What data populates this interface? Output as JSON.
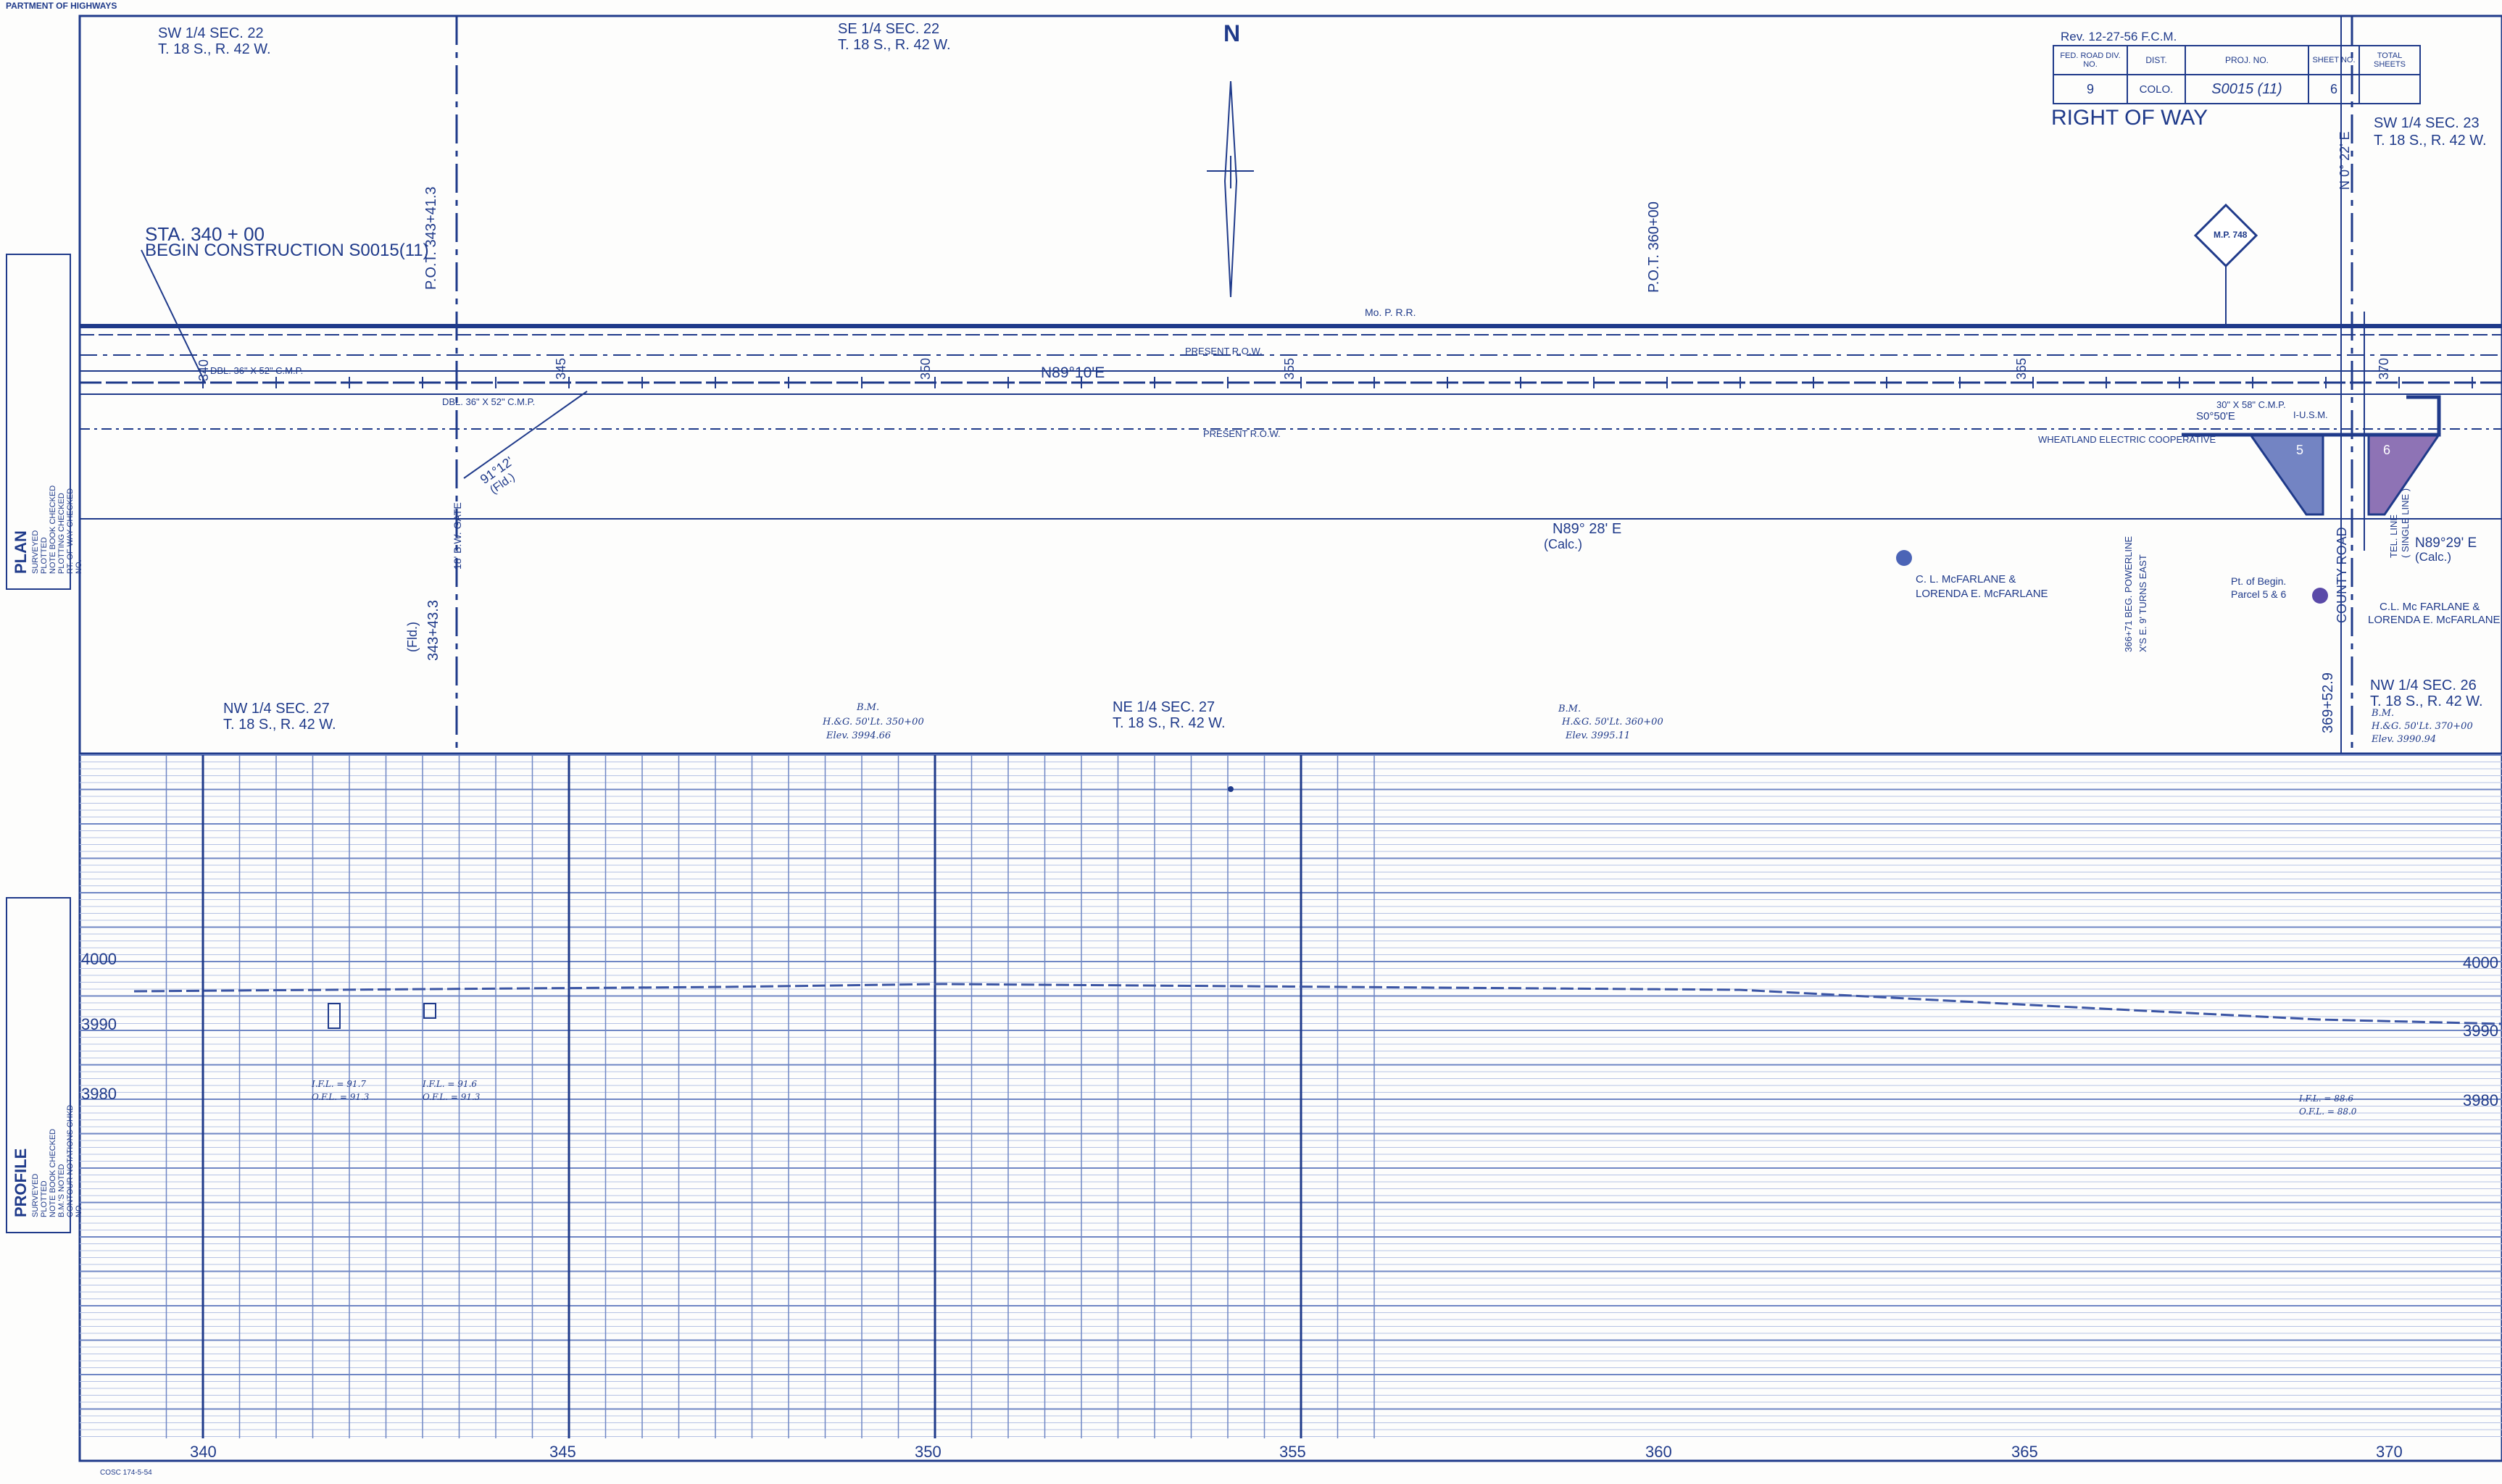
{
  "header": {
    "agency": "PARTMENT OF HIGHWAYS",
    "rev_note": "Rev. 12-27-56 F.C.M.",
    "title": "RIGHT OF WAY",
    "north": "N",
    "title_block": {
      "col1_head": "FED. ROAD DIV. NO.",
      "col2_head": "DIST.",
      "col3_head": "PROJ. NO.",
      "col4_head": "SHEET NO.",
      "col5_head": "TOTAL SHEETS",
      "col1_val": "9",
      "col2_val": "COLO.",
      "col3_val": "S0015 (11)",
      "col4_val": "6",
      "col5_val": ""
    }
  },
  "plan": {
    "sections": {
      "sw22": "SW 1/4 SEC. 22",
      "sw22_tr": "T. 18 S., R. 42 W.",
      "se22": "SE 1/4 SEC. 22",
      "se22_tr": "T. 18 S., R. 42 W.",
      "sw23": "SW 1/4 SEC. 23",
      "sw23_tr": "T. 18 S., R. 42 W.",
      "nw27": "NW 1/4 SEC. 27",
      "nw27_tr": "T. 18 S., R. 42 W.",
      "ne27": "NE 1/4 SEC. 27",
      "ne27_tr": "T. 18 S., R. 42 W.",
      "nw26": "NW 1/4 SEC. 26",
      "nw26_tr": "T. 18 S., R. 42 W."
    },
    "begin_sta": "STA. 340 + 00",
    "begin_construction": "BEGIN CONSTRUCTION S0015(11)",
    "pot_343": "P.O.T. 343+41.3",
    "pot_360": "P.O.T. 360+00",
    "railroad": "Mo. P. R.R.",
    "present_row_top": "PRESENT R.O.W.",
    "present_row_bottom": "PRESENT R.O.W.",
    "bearing_center": "N89°10'E",
    "bearing_calc": "N89° 28' E",
    "calc": "(Calc.)",
    "bearing_calc_right": "N89°29' E",
    "calc_right": "(Calc.)",
    "culvert1": "DBL. 36\" X 52\" C.M.P.",
    "culvert2": "DBL. 36\" X 52\" C.M.P.",
    "culvert3": "30\" X 58\" C.M.P.",
    "angle_fld": "91°12'",
    "fld": "(Fld.)",
    "gate": "18' B.W. GATE",
    "sta_343_lower": "343+43.3",
    "fld_lower": "(Fld.)",
    "wheatland": "WHEATLAND ELECTRIC COOPERATIVE",
    "power_line": "366+71 BEG. POWERLINE",
    "power_line2": "X'S E. 9' TURNS EAST",
    "owner1": "C. L. McFARLANE &",
    "owner1b": "LORENDA E. McFARLANE",
    "owner2": "C.L. Mc FARLANE &",
    "owner2b": "LORENDA E. McFARLANE",
    "pt_begin": "Pt. of Begin.",
    "parcel": "Parcel 5 & 6",
    "so50": "S0°50'E",
    "county_road": "COUNTY ROAD",
    "n0_22": "N 0° 22' E",
    "sta_369": "369+52.9",
    "tel_line": "TEL. LINE",
    "single_line": "( SINGLE LINE )",
    "mp_sign": "M.P. 748",
    "usm": "I-U.S.M.",
    "parcel_a": "5",
    "parcel_b": "6",
    "sta_labels": [
      "340",
      "345",
      "350",
      "355",
      "365",
      "370"
    ]
  },
  "profile": {
    "elevations": [
      "4000",
      "3990",
      "3980"
    ],
    "elevations_right": [
      "4000",
      "3990",
      "3980"
    ],
    "stations": [
      "340",
      "345",
      "350",
      "355",
      "360",
      "365",
      "370"
    ],
    "bm1_title": "B.M.",
    "bm1_a": "H.&G. 50'Lt. 350+00",
    "bm1_b": "Elev. 3994.66",
    "bm2_title": "B.M.",
    "bm2_a": "H.&G. 50'Lt. 360+00",
    "bm2_b": "Elev. 3995.11",
    "bm3_title": "B.M.",
    "bm3_a": "H.&G. 50'Lt. 370+00",
    "bm3_b": "Elev. 3990.94",
    "fl1_a": "I.F.L. = 91.7",
    "fl1_b": "O.F.L. = 91.3",
    "fl2_a": "I.F.L. = 91.6",
    "fl2_b": "O.F.L. = 91.3",
    "fl3_a": "I.F.L. = 88.6",
    "fl3_b": "O.F.L. = 88.0"
  },
  "side_strips": {
    "plan_label": "PLAN",
    "plan_items": [
      "SURVEYED",
      "PLOTTED",
      "NOTE BOOK CHECKED",
      "PLOTTING CHECKED",
      "RT. OF WAY CHECKED",
      "NO."
    ],
    "profile_label": "PROFILE",
    "profile_items": [
      "SURVEYED",
      "PLOTTED",
      "NOTE BOOK CHECKED",
      "B.M.'S NOTED",
      "CONTOUR NOTATIONS CHKD",
      "NO."
    ]
  },
  "footer": {
    "form_no": "COSC 174-5-54"
  },
  "colors": {
    "ink": "#1f3a8a",
    "grid": "#6f86c4",
    "grid_fine": "#b5c2e4",
    "parcel_blue": "#5b6fb8",
    "parcel_purple": "#7a5aa8"
  },
  "icons": {
    "north_arrow": "north-arrow-icon",
    "mp_sign": "diamond-sign-icon",
    "bm_marker": "benchmark-dot-icon"
  }
}
